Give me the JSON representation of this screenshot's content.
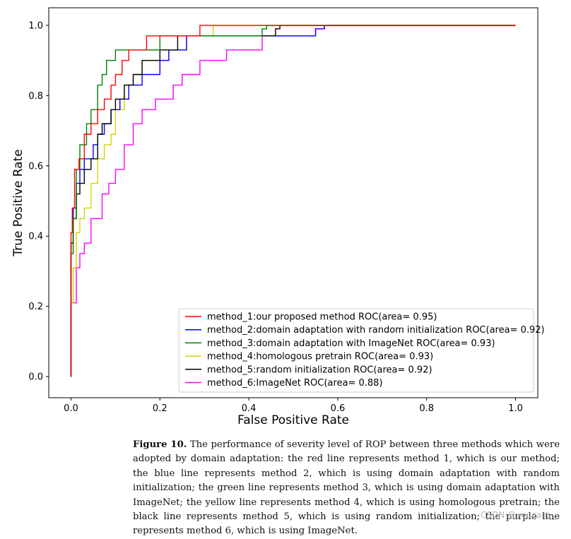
{
  "chart_data": {
    "type": "line",
    "xlabel": "False Positive Rate",
    "ylabel": "True Positive Rate",
    "xlim": [
      -0.05,
      1.05
    ],
    "ylim": [
      -0.06,
      1.05
    ],
    "xticks": [
      "0.0",
      "0.2",
      "0.4",
      "0.6",
      "0.8",
      "1.0"
    ],
    "yticks": [
      "0.0",
      "0.2",
      "0.4",
      "0.6",
      "0.8",
      "1.0"
    ],
    "legend_position": "lower-right",
    "series": [
      {
        "name": "method_1:our proposed method ROC(area= 0.95)",
        "color": "#ff0000",
        "x": [
          0,
          0,
          0.003,
          0.003,
          0.008,
          0.008,
          0.018,
          0.018,
          0.03,
          0.03,
          0.045,
          0.045,
          0.06,
          0.06,
          0.075,
          0.075,
          0.09,
          0.09,
          0.1,
          0.1,
          0.115,
          0.115,
          0.13,
          0.13,
          0.15,
          0.15,
          0.17,
          0.17,
          0.2,
          0.2,
          0.29,
          0.29,
          0.31,
          0.31,
          1.0
        ],
        "y": [
          0,
          0.41,
          0.41,
          0.48,
          0.48,
          0.59,
          0.59,
          0.62,
          0.62,
          0.69,
          0.69,
          0.72,
          0.72,
          0.76,
          0.76,
          0.79,
          0.79,
          0.83,
          0.83,
          0.86,
          0.86,
          0.9,
          0.9,
          0.93,
          0.93,
          0.93,
          0.93,
          0.97,
          0.97,
          0.97,
          0.97,
          1.0,
          1.0,
          1.0,
          1.0
        ]
      },
      {
        "name": "method_2:domain adaptation with random initialization ROC(area= 0.92)",
        "color": "#0000ff",
        "x": [
          0,
          0,
          0.005,
          0.005,
          0.012,
          0.012,
          0.02,
          0.02,
          0.03,
          0.03,
          0.05,
          0.05,
          0.06,
          0.06,
          0.075,
          0.075,
          0.09,
          0.09,
          0.11,
          0.11,
          0.13,
          0.13,
          0.16,
          0.16,
          0.2,
          0.2,
          0.22,
          0.22,
          0.26,
          0.26,
          0.29,
          0.29,
          0.55,
          0.55,
          0.57,
          0.57,
          1.0
        ],
        "y": [
          0,
          0.38,
          0.38,
          0.48,
          0.48,
          0.55,
          0.55,
          0.59,
          0.59,
          0.62,
          0.62,
          0.66,
          0.66,
          0.69,
          0.69,
          0.72,
          0.72,
          0.76,
          0.76,
          0.79,
          0.79,
          0.83,
          0.83,
          0.86,
          0.86,
          0.9,
          0.9,
          0.93,
          0.93,
          0.97,
          0.97,
          0.97,
          0.97,
          0.99,
          0.99,
          1.0,
          1.0
        ]
      },
      {
        "name": "method_3:domain adaptation with ImageNet ROC(area= 0.93)",
        "color": "#008000",
        "x": [
          0,
          0,
          0.005,
          0.005,
          0.012,
          0.012,
          0.02,
          0.02,
          0.035,
          0.035,
          0.045,
          0.045,
          0.06,
          0.06,
          0.07,
          0.07,
          0.08,
          0.08,
          0.1,
          0.1,
          0.19,
          0.19,
          0.2,
          0.2,
          0.43,
          0.43,
          0.44,
          0.44,
          1.0
        ],
        "y": [
          0,
          0.35,
          0.35,
          0.45,
          0.45,
          0.59,
          0.59,
          0.66,
          0.66,
          0.72,
          0.72,
          0.76,
          0.76,
          0.83,
          0.83,
          0.86,
          0.86,
          0.9,
          0.9,
          0.93,
          0.93,
          0.93,
          0.93,
          0.97,
          0.97,
          0.99,
          0.99,
          1.0,
          1.0
        ]
      },
      {
        "name": "method_4:homologous pretrain ROC(area= 0.93)",
        "color": "#d4d400",
        "x": [
          0,
          0,
          0.005,
          0.005,
          0.012,
          0.012,
          0.02,
          0.02,
          0.03,
          0.03,
          0.045,
          0.045,
          0.06,
          0.06,
          0.075,
          0.075,
          0.09,
          0.09,
          0.1,
          0.1,
          0.12,
          0.12,
          0.14,
          0.14,
          0.16,
          0.16,
          0.18,
          0.18,
          0.22,
          0.22,
          0.26,
          0.26,
          0.3,
          0.3,
          0.32,
          0.32,
          1.0
        ],
        "y": [
          0,
          0.21,
          0.21,
          0.31,
          0.31,
          0.41,
          0.41,
          0.45,
          0.45,
          0.48,
          0.48,
          0.55,
          0.55,
          0.62,
          0.62,
          0.66,
          0.66,
          0.69,
          0.69,
          0.76,
          0.76,
          0.83,
          0.83,
          0.86,
          0.86,
          0.9,
          0.9,
          0.9,
          0.9,
          0.93,
          0.93,
          0.97,
          0.97,
          0.97,
          0.97,
          1.0,
          1.0
        ]
      },
      {
        "name": "method_5:random initialization ROC(area= 0.92)",
        "color": "#000000",
        "x": [
          0,
          0,
          0.005,
          0.005,
          0.012,
          0.012,
          0.02,
          0.02,
          0.03,
          0.03,
          0.045,
          0.045,
          0.06,
          0.06,
          0.07,
          0.07,
          0.09,
          0.09,
          0.1,
          0.1,
          0.12,
          0.12,
          0.14,
          0.14,
          0.16,
          0.16,
          0.2,
          0.2,
          0.24,
          0.24,
          0.3,
          0.3,
          0.46,
          0.46,
          0.47,
          0.47,
          1.0
        ],
        "y": [
          0,
          0.38,
          0.38,
          0.45,
          0.45,
          0.52,
          0.52,
          0.55,
          0.55,
          0.59,
          0.59,
          0.62,
          0.62,
          0.69,
          0.69,
          0.72,
          0.72,
          0.76,
          0.76,
          0.79,
          0.79,
          0.83,
          0.83,
          0.86,
          0.86,
          0.9,
          0.9,
          0.93,
          0.93,
          0.97,
          0.97,
          0.97,
          0.97,
          0.99,
          0.99,
          1.0,
          1.0
        ]
      },
      {
        "name": "method_6:ImageNet ROC(area= 0.88)",
        "color": "#ff00ff",
        "x": [
          0,
          0,
          0.005,
          0.005,
          0.012,
          0.012,
          0.02,
          0.02,
          0.03,
          0.03,
          0.045,
          0.045,
          0.07,
          0.07,
          0.085,
          0.085,
          0.1,
          0.1,
          0.12,
          0.12,
          0.14,
          0.14,
          0.16,
          0.16,
          0.19,
          0.19,
          0.21,
          0.21,
          0.23,
          0.23,
          0.25,
          0.25,
          0.27,
          0.27,
          0.29,
          0.29,
          0.31,
          0.31,
          0.35,
          0.35,
          0.43,
          0.43,
          0.45,
          0.45,
          0.55,
          0.55,
          0.57,
          0.57,
          1.0
        ],
        "y": [
          0,
          0.21,
          0.21,
          0.21,
          0.21,
          0.31,
          0.31,
          0.35,
          0.35,
          0.38,
          0.38,
          0.45,
          0.45,
          0.52,
          0.52,
          0.55,
          0.55,
          0.59,
          0.59,
          0.66,
          0.66,
          0.72,
          0.72,
          0.76,
          0.76,
          0.79,
          0.79,
          0.79,
          0.79,
          0.83,
          0.83,
          0.86,
          0.86,
          0.86,
          0.86,
          0.9,
          0.9,
          0.9,
          0.9,
          0.93,
          0.93,
          0.97,
          0.97,
          0.97,
          0.97,
          0.99,
          0.99,
          1.0,
          1.0
        ]
      }
    ]
  },
  "caption": {
    "label": "Figure 10.",
    "text": " The performance of severity level of ROP between three methods which were adopted by domain adaptation: the red line represents method 1, which is our method; the blue line represents method 2, which is using domain adaptation with random initialization; the green line represents method 3, which is using domain adaptation with ImageNet; the yellow line represents method 4, which is using homologous pretrain; the black line represents method 5, which is using random initialization; the purple line represents method 6, which is using ImageNet."
  },
  "watermark": "CSDN @youcans_"
}
